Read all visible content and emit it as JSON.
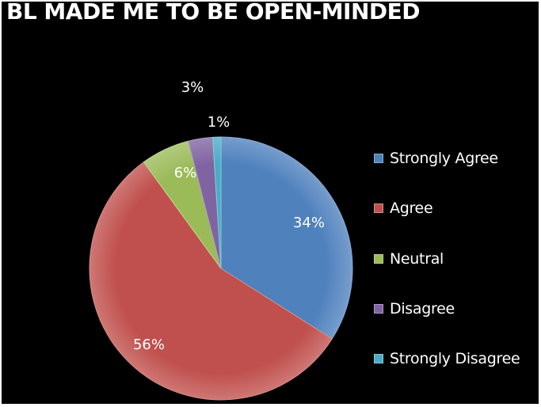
{
  "chart_data": {
    "type": "pie",
    "title": "BL MADE ME TO BE OPEN-MINDED",
    "categories": [
      "Strongly Agree",
      "Agree",
      "Neutral",
      "Disagree",
      "Strongly Disagree"
    ],
    "values": [
      34,
      56,
      6,
      3,
      1
    ],
    "labels": [
      "34%",
      "56%",
      "6%",
      "3%",
      "1%"
    ],
    "colors": [
      "#4F81BD",
      "#C0504D",
      "#9BBB59",
      "#8064A2",
      "#4BACC6"
    ],
    "legend_position": "right",
    "background": "#000000"
  }
}
